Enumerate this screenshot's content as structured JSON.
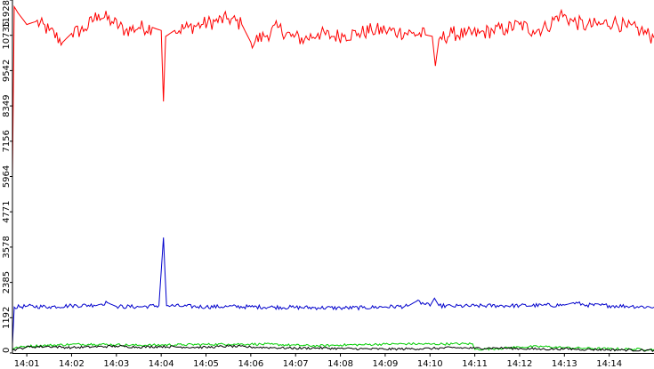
{
  "chart_data": {
    "type": "line",
    "title": "",
    "xlabel": "",
    "ylabel": "",
    "x_tick_labels": [
      "14:01",
      "14:02",
      "14:03",
      "14:04",
      "14:05",
      "14:06",
      "14:07",
      "14:08",
      "14:09",
      "14:10",
      "14:11",
      "14:12",
      "14:13",
      "14:14"
    ],
    "x_range_minutes": [
      0.68,
      15.0
    ],
    "y_ticks": [
      0,
      1192,
      2385,
      3578,
      4771,
      5964,
      7156,
      8349,
      9542,
      10735,
      11928
    ],
    "ylim": [
      0,
      11928
    ],
    "grid": false,
    "legend": "none",
    "series": [
      {
        "color": "#ff0000",
        "description_points": [
          [
            0.68,
            6000
          ],
          [
            0.72,
            11700
          ],
          [
            0.8,
            11500
          ],
          [
            1.0,
            11100
          ],
          [
            1.2,
            11200
          ],
          [
            1.5,
            10900
          ],
          [
            1.8,
            10500
          ],
          [
            2.0,
            10800
          ],
          [
            2.3,
            10950
          ],
          [
            2.6,
            11450
          ],
          [
            2.9,
            11200
          ],
          [
            3.2,
            10900
          ],
          [
            3.5,
            11000
          ],
          [
            3.8,
            11000
          ],
          [
            4.0,
            10900
          ],
          [
            4.05,
            8500
          ],
          [
            4.1,
            10700
          ],
          [
            4.3,
            10900
          ],
          [
            4.6,
            11000
          ],
          [
            4.9,
            11100
          ],
          [
            5.2,
            11200
          ],
          [
            5.5,
            11300
          ],
          [
            5.8,
            11100
          ],
          [
            6.0,
            10500
          ],
          [
            6.3,
            10700
          ],
          [
            6.6,
            11000
          ],
          [
            6.9,
            10700
          ],
          [
            7.2,
            10600
          ],
          [
            7.5,
            10800
          ],
          [
            7.8,
            10700
          ],
          [
            8.1,
            10750
          ],
          [
            8.4,
            10800
          ],
          [
            8.7,
            10900
          ],
          [
            9.0,
            10900
          ],
          [
            9.3,
            10850
          ],
          [
            9.6,
            10800
          ],
          [
            9.9,
            10750
          ],
          [
            10.05,
            10700
          ],
          [
            10.12,
            9700
          ],
          [
            10.2,
            10600
          ],
          [
            10.5,
            10800
          ],
          [
            10.8,
            10750
          ],
          [
            11.1,
            10800
          ],
          [
            11.4,
            10900
          ],
          [
            11.7,
            10950
          ],
          [
            12.0,
            11100
          ],
          [
            12.3,
            10900
          ],
          [
            12.6,
            11000
          ],
          [
            12.9,
            11450
          ],
          [
            13.2,
            11200
          ],
          [
            13.5,
            11050
          ],
          [
            13.8,
            11100
          ],
          [
            14.1,
            11200
          ],
          [
            14.4,
            11000
          ],
          [
            14.7,
            10900
          ],
          [
            15.0,
            10650
          ]
        ],
        "values_note_free": true
      },
      {
        "color": "#0000cc",
        "description_points": [
          [
            0.68,
            300
          ],
          [
            0.72,
            1550
          ],
          [
            1.0,
            1580
          ],
          [
            1.5,
            1560
          ],
          [
            2.0,
            1600
          ],
          [
            2.5,
            1620
          ],
          [
            2.8,
            1700
          ],
          [
            3.0,
            1570
          ],
          [
            3.5,
            1560
          ],
          [
            3.95,
            1600
          ],
          [
            4.05,
            3900
          ],
          [
            4.12,
            1600
          ],
          [
            4.5,
            1580
          ],
          [
            5.0,
            1560
          ],
          [
            5.5,
            1570
          ],
          [
            6.0,
            1560
          ],
          [
            6.5,
            1550
          ],
          [
            7.0,
            1540
          ],
          [
            7.5,
            1530
          ],
          [
            8.0,
            1520
          ],
          [
            8.5,
            1530
          ],
          [
            9.0,
            1560
          ],
          [
            9.5,
            1580
          ],
          [
            9.7,
            1750
          ],
          [
            10.0,
            1590
          ],
          [
            10.1,
            1850
          ],
          [
            10.2,
            1600
          ],
          [
            10.5,
            1580
          ],
          [
            11.0,
            1590
          ],
          [
            11.5,
            1600
          ],
          [
            12.0,
            1600
          ],
          [
            12.5,
            1610
          ],
          [
            13.0,
            1620
          ],
          [
            13.2,
            1700
          ],
          [
            13.5,
            1620
          ],
          [
            14.0,
            1600
          ],
          [
            14.5,
            1580
          ],
          [
            15.0,
            1550
          ]
        ]
      },
      {
        "color": "#00cc00",
        "description_points": [
          [
            0.68,
            150
          ],
          [
            1.0,
            230
          ],
          [
            1.5,
            260
          ],
          [
            2.0,
            290
          ],
          [
            2.5,
            300
          ],
          [
            3.0,
            280
          ],
          [
            3.5,
            260
          ],
          [
            4.0,
            270
          ],
          [
            4.5,
            280
          ],
          [
            5.0,
            290
          ],
          [
            5.5,
            300
          ],
          [
            6.0,
            300
          ],
          [
            6.5,
            290
          ],
          [
            7.0,
            260
          ],
          [
            7.5,
            240
          ],
          [
            8.0,
            270
          ],
          [
            8.5,
            280
          ],
          [
            9.0,
            300
          ],
          [
            9.5,
            310
          ],
          [
            10.0,
            300
          ],
          [
            10.5,
            310
          ],
          [
            10.95,
            310
          ],
          [
            11.0,
            120
          ],
          [
            11.5,
            150
          ],
          [
            12.0,
            200
          ],
          [
            12.5,
            220
          ],
          [
            13.0,
            180
          ],
          [
            13.5,
            160
          ],
          [
            14.0,
            140
          ],
          [
            14.5,
            130
          ],
          [
            15.0,
            120
          ]
        ]
      },
      {
        "color": "#000000",
        "description_points": [
          [
            0.68,
            100
          ],
          [
            1.0,
            200
          ],
          [
            1.5,
            220
          ],
          [
            2.0,
            180
          ],
          [
            2.5,
            210
          ],
          [
            3.0,
            230
          ],
          [
            3.5,
            200
          ],
          [
            4.0,
            220
          ],
          [
            4.5,
            200
          ],
          [
            5.0,
            190
          ],
          [
            5.5,
            230
          ],
          [
            6.0,
            200
          ],
          [
            6.5,
            180
          ],
          [
            7.0,
            160
          ],
          [
            7.5,
            170
          ],
          [
            8.0,
            150
          ],
          [
            8.5,
            140
          ],
          [
            9.0,
            130
          ],
          [
            9.5,
            140
          ],
          [
            10.0,
            150
          ],
          [
            10.5,
            180
          ],
          [
            11.0,
            160
          ],
          [
            11.5,
            170
          ],
          [
            12.0,
            150
          ],
          [
            12.5,
            130
          ],
          [
            13.0,
            140
          ],
          [
            13.5,
            120
          ],
          [
            14.0,
            110
          ],
          [
            14.5,
            100
          ],
          [
            15.0,
            90
          ]
        ]
      }
    ]
  }
}
